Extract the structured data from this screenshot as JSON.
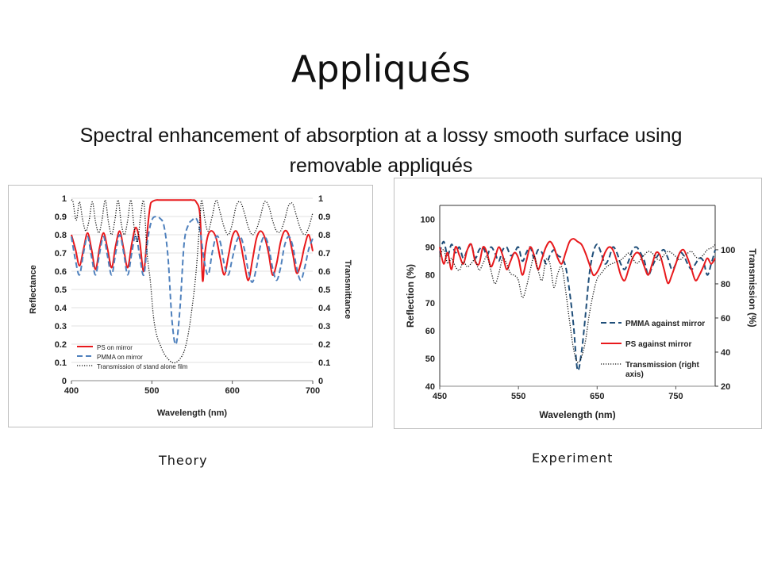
{
  "slide": {
    "title": "Appliqués",
    "subtitle": "Spectral enhancement of absorption at a lossy smooth surface using removable appliqués"
  },
  "captions": {
    "theory": "Theory",
    "experiment": "Experiment"
  },
  "colors": {
    "ps": "#e8191c",
    "pmma_theory": "#4f81bd",
    "pmma_exp": "#1f4e79",
    "transmission": "#111111"
  },
  "chart_data": [
    {
      "type": "line",
      "panel": "theory",
      "xlabel": "Wavelength (nm)",
      "ylabel": "Reflectance",
      "y2label": "Transmittance",
      "xlim": [
        400,
        700
      ],
      "ylim": [
        0,
        1
      ],
      "y2lim": [
        0,
        1
      ],
      "xticks": [
        "400",
        "500",
        "600",
        "700"
      ],
      "yticks": [
        "0",
        "0.1",
        "0.2",
        "0.3",
        "0.4",
        "0.5",
        "0.6",
        "0.7",
        "0.8",
        "0.9",
        "1"
      ],
      "y2ticks": [
        "0",
        "0.1",
        "0.2",
        "0.3",
        "0.4",
        "0.5",
        "0.6",
        "0.7",
        "0.8",
        "0.9",
        "1"
      ],
      "legend_position": "bottom-left",
      "series": [
        {
          "name": "PS on mirror",
          "color": "#e8191c",
          "dash": "solid",
          "axis": "left",
          "x": [
            400,
            405,
            410,
            415,
            420,
            425,
            430,
            435,
            440,
            445,
            450,
            455,
            460,
            465,
            470,
            475,
            480,
            485,
            490,
            495,
            498,
            500,
            505,
            510,
            515,
            520,
            525,
            530,
            535,
            540,
            545,
            550,
            555,
            560,
            563,
            566,
            570,
            575,
            580,
            585,
            590,
            595,
            600,
            605,
            610,
            615,
            620,
            625,
            630,
            635,
            640,
            645,
            650,
            655,
            660,
            665,
            670,
            675,
            680,
            685,
            690,
            695,
            700
          ],
          "y": [
            0.8,
            0.72,
            0.63,
            0.72,
            0.81,
            0.72,
            0.61,
            0.73,
            0.81,
            0.72,
            0.62,
            0.74,
            0.82,
            0.72,
            0.62,
            0.75,
            0.84,
            0.76,
            0.6,
            0.85,
            0.96,
            0.98,
            0.99,
            0.99,
            0.99,
            0.99,
            0.99,
            0.99,
            0.99,
            0.99,
            0.99,
            0.99,
            0.98,
            0.9,
            0.55,
            0.7,
            0.8,
            0.82,
            0.78,
            0.67,
            0.58,
            0.68,
            0.79,
            0.82,
            0.76,
            0.64,
            0.55,
            0.66,
            0.78,
            0.82,
            0.79,
            0.7,
            0.58,
            0.64,
            0.76,
            0.82,
            0.8,
            0.7,
            0.59,
            0.64,
            0.74,
            0.8,
            0.71
          ]
        },
        {
          "name": "PMMA on mirror",
          "color": "#4f81bd",
          "dash": "dashed",
          "axis": "left",
          "x": [
            400,
            405,
            410,
            415,
            420,
            425,
            430,
            435,
            440,
            445,
            450,
            455,
            460,
            465,
            470,
            475,
            480,
            485,
            490,
            495,
            500,
            505,
            510,
            515,
            520,
            525,
            530,
            535,
            540,
            545,
            550,
            555,
            560,
            565,
            570,
            575,
            580,
            585,
            590,
            595,
            600,
            605,
            610,
            615,
            620,
            625,
            630,
            635,
            640,
            645,
            650,
            655,
            660,
            665,
            670,
            675,
            680,
            685,
            690,
            695,
            700
          ],
          "y": [
            0.79,
            0.66,
            0.58,
            0.7,
            0.79,
            0.68,
            0.58,
            0.7,
            0.79,
            0.68,
            0.58,
            0.7,
            0.8,
            0.7,
            0.58,
            0.7,
            0.8,
            0.68,
            0.58,
            0.78,
            0.88,
            0.9,
            0.89,
            0.85,
            0.68,
            0.33,
            0.2,
            0.4,
            0.75,
            0.85,
            0.88,
            0.89,
            0.82,
            0.66,
            0.58,
            0.7,
            0.79,
            0.76,
            0.64,
            0.58,
            0.67,
            0.76,
            0.79,
            0.72,
            0.6,
            0.54,
            0.62,
            0.74,
            0.79,
            0.74,
            0.62,
            0.55,
            0.62,
            0.74,
            0.79,
            0.74,
            0.62,
            0.55,
            0.62,
            0.72,
            0.78
          ]
        },
        {
          "name": "Transmission of stand alone film",
          "color": "#111111",
          "dash": "dotted",
          "axis": "right",
          "x": [
            400,
            402,
            406,
            410,
            414,
            418,
            422,
            426,
            430,
            434,
            438,
            442,
            446,
            450,
            454,
            458,
            462,
            466,
            470,
            474,
            478,
            482,
            486,
            490,
            494,
            498,
            502,
            506,
            510,
            515,
            520,
            525,
            530,
            535,
            540,
            545,
            550,
            555,
            560,
            562,
            566,
            570,
            575,
            580,
            585,
            590,
            595,
            600,
            605,
            610,
            615,
            620,
            625,
            630,
            635,
            640,
            645,
            650,
            655,
            660,
            665,
            670,
            675,
            680,
            685,
            690,
            695,
            700
          ],
          "y": [
            0.99,
            0.98,
            0.88,
            0.98,
            0.88,
            0.82,
            0.88,
            0.98,
            0.87,
            0.81,
            0.88,
            0.99,
            0.87,
            0.8,
            0.88,
            0.99,
            0.86,
            0.8,
            0.88,
            0.99,
            0.84,
            0.76,
            0.9,
            0.98,
            0.7,
            0.55,
            0.35,
            0.25,
            0.2,
            0.15,
            0.12,
            0.1,
            0.1,
            0.12,
            0.16,
            0.25,
            0.4,
            0.6,
            0.9,
            0.99,
            0.88,
            0.82,
            0.9,
            0.99,
            0.92,
            0.84,
            0.8,
            0.86,
            0.96,
            0.98,
            0.92,
            0.84,
            0.8,
            0.83,
            0.9,
            0.98,
            0.96,
            0.88,
            0.82,
            0.82,
            0.88,
            0.96,
            0.97,
            0.9,
            0.83,
            0.8,
            0.84,
            0.92
          ]
        }
      ]
    },
    {
      "type": "line",
      "panel": "experiment",
      "xlabel": "Wavelength (nm)",
      "ylabel": "Reflection (%)",
      "y2label": "Transmission (%)",
      "xlim": [
        450,
        800
      ],
      "ylim": [
        40,
        105
      ],
      "y2lim": [
        20,
        126
      ],
      "xticks": [
        "450",
        "550",
        "650",
        "750"
      ],
      "yticks": [
        "40",
        "50",
        "60",
        "70",
        "80",
        "90",
        "100"
      ],
      "y2ticks": [
        "20",
        "40",
        "60",
        "80",
        "100"
      ],
      "legend_position": "bottom-right",
      "series": [
        {
          "name": "PMMA against mirror",
          "color": "#1f4e79",
          "dash": "dashed",
          "axis": "left",
          "x": [
            450,
            455,
            460,
            465,
            470,
            475,
            480,
            485,
            490,
            495,
            500,
            505,
            510,
            515,
            520,
            525,
            530,
            535,
            540,
            545,
            550,
            555,
            560,
            565,
            570,
            575,
            580,
            585,
            590,
            595,
            600,
            605,
            610,
            615,
            620,
            625,
            630,
            635,
            640,
            645,
            650,
            655,
            660,
            665,
            670,
            675,
            680,
            685,
            690,
            695,
            700,
            705,
            710,
            715,
            720,
            725,
            730,
            735,
            740,
            745,
            750,
            755,
            760,
            765,
            770,
            775,
            780,
            785,
            790,
            795,
            800
          ],
          "y": [
            88,
            92,
            87,
            91,
            88,
            90,
            86,
            89,
            91,
            86,
            89,
            90,
            87,
            90,
            88,
            85,
            89,
            90,
            87,
            88,
            90,
            85,
            88,
            90,
            86,
            89,
            88,
            84,
            87,
            89,
            87,
            86,
            83,
            74,
            62,
            46,
            52,
            65,
            80,
            88,
            91,
            88,
            84,
            86,
            90,
            88,
            84,
            82,
            85,
            89,
            90,
            88,
            85,
            80,
            83,
            86,
            88,
            89,
            86,
            82,
            84,
            88,
            87,
            84,
            82,
            84,
            86,
            85,
            80,
            84,
            89
          ]
        },
        {
          "name": "PS against mirror",
          "color": "#e8191c",
          "dash": "solid",
          "axis": "left",
          "x": [
            450,
            455,
            460,
            465,
            470,
            475,
            480,
            485,
            490,
            495,
            500,
            505,
            510,
            515,
            520,
            525,
            530,
            535,
            540,
            545,
            550,
            555,
            560,
            565,
            570,
            575,
            580,
            585,
            590,
            595,
            600,
            605,
            610,
            615,
            620,
            625,
            630,
            635,
            640,
            645,
            650,
            655,
            660,
            665,
            670,
            675,
            680,
            685,
            690,
            695,
            700,
            705,
            710,
            715,
            720,
            725,
            730,
            735,
            740,
            745,
            750,
            755,
            760,
            765,
            770,
            775,
            780,
            785,
            790,
            795,
            800
          ],
          "y": [
            90,
            84,
            88,
            82,
            90,
            87,
            84,
            89,
            91,
            85,
            84,
            90,
            88,
            83,
            86,
            90,
            87,
            82,
            85,
            88,
            86,
            80,
            85,
            90,
            87,
            82,
            86,
            90,
            92,
            90,
            86,
            84,
            88,
            92,
            93,
            92,
            91,
            88,
            84,
            80,
            81,
            84,
            88,
            90,
            89,
            85,
            80,
            78,
            82,
            86,
            88,
            87,
            83,
            80,
            84,
            88,
            87,
            82,
            77,
            80,
            84,
            88,
            89,
            86,
            82,
            78,
            80,
            83,
            86,
            84,
            86
          ]
        },
        {
          "name": "Transmission (right axis)",
          "color": "#111111",
          "dash": "dotted",
          "axis": "right",
          "x": [
            450,
            455,
            460,
            465,
            470,
            475,
            480,
            485,
            490,
            495,
            500,
            505,
            510,
            515,
            520,
            525,
            530,
            535,
            540,
            545,
            550,
            555,
            560,
            565,
            570,
            575,
            580,
            585,
            590,
            595,
            600,
            605,
            610,
            615,
            620,
            625,
            630,
            635,
            640,
            645,
            650,
            655,
            660,
            665,
            670,
            675,
            680,
            685,
            690,
            695,
            700,
            705,
            710,
            715,
            720,
            725,
            730,
            735,
            740,
            745,
            750,
            755,
            760,
            765,
            770,
            775,
            780,
            785,
            790,
            795,
            800
          ],
          "y": [
            96,
            100,
            92,
            95,
            90,
            88,
            93,
            90,
            92,
            94,
            88,
            92,
            96,
            88,
            80,
            86,
            95,
            92,
            86,
            85,
            82,
            72,
            78,
            88,
            96,
            88,
            82,
            94,
            92,
            78,
            86,
            90,
            76,
            58,
            42,
            34,
            37,
            46,
            62,
            74,
            83,
            86,
            89,
            91,
            92,
            93,
            94,
            96,
            98,
            95,
            92,
            94,
            97,
            99,
            98,
            95,
            94,
            97,
            99,
            98,
            96,
            94,
            96,
            98,
            99,
            96,
            95,
            97,
            100,
            101,
            103
          ]
        }
      ]
    }
  ]
}
